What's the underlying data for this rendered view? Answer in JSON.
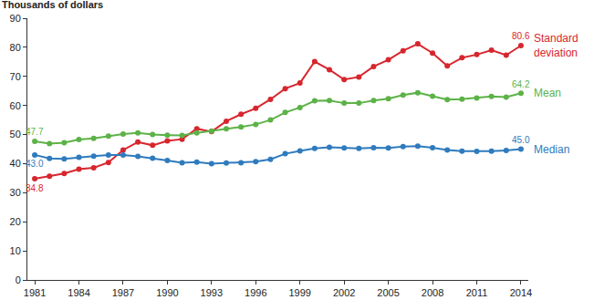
{
  "chart_data": {
    "type": "line",
    "title": "Thousands of dollars",
    "x": [
      1981,
      1982,
      1983,
      1984,
      1985,
      1986,
      1987,
      1988,
      1989,
      1990,
      1991,
      1992,
      1993,
      1994,
      1995,
      1996,
      1997,
      1998,
      1999,
      2000,
      2001,
      2002,
      2003,
      2004,
      2005,
      2006,
      2007,
      2008,
      2009,
      2010,
      2011,
      2012,
      2013,
      2014
    ],
    "series": [
      {
        "name": "Standard deviation",
        "color": "#d7262e",
        "marker": "circle",
        "values": [
          34.8,
          35.7,
          36.6,
          38.1,
          38.6,
          40.4,
          44.7,
          47.4,
          46.3,
          47.8,
          48.4,
          52.0,
          51.0,
          54.6,
          57.0,
          59.0,
          62.1,
          65.8,
          67.7,
          75.1,
          72.3,
          68.9,
          69.8,
          73.4,
          75.7,
          78.8,
          81.2,
          78.0,
          73.6,
          76.4,
          77.5,
          79.0,
          77.3,
          80.6
        ],
        "value_labels": [
          "34.8",
          null,
          null,
          null,
          null,
          null,
          null,
          null,
          null,
          null,
          null,
          null,
          null,
          null,
          null,
          null,
          null,
          null,
          null,
          null,
          null,
          null,
          null,
          null,
          null,
          null,
          null,
          null,
          null,
          null,
          null,
          null,
          null,
          "80.6"
        ]
      },
      {
        "name": "Mean",
        "color": "#5cb247",
        "marker": "circle",
        "values": [
          47.7,
          46.9,
          47.2,
          48.3,
          48.7,
          49.5,
          50.2,
          50.6,
          50.0,
          49.8,
          49.7,
          50.6,
          51.2,
          52.0,
          52.6,
          53.5,
          55.0,
          57.6,
          59.3,
          61.6,
          61.7,
          60.8,
          60.8,
          61.7,
          62.3,
          63.6,
          64.4,
          63.2,
          62.0,
          62.2,
          62.6,
          63.1,
          62.9,
          64.2
        ],
        "value_labels": [
          "47.7",
          null,
          null,
          null,
          null,
          null,
          null,
          null,
          null,
          null,
          null,
          null,
          null,
          null,
          null,
          null,
          null,
          null,
          null,
          null,
          null,
          null,
          null,
          null,
          null,
          null,
          null,
          null,
          null,
          null,
          null,
          null,
          null,
          "64.2"
        ]
      },
      {
        "name": "Median",
        "color": "#2f7bbd",
        "marker": "circle",
        "values": [
          43.0,
          41.8,
          41.6,
          42.2,
          42.6,
          43.0,
          43.0,
          42.5,
          41.9,
          41.1,
          40.3,
          40.5,
          40.0,
          40.2,
          40.3,
          40.7,
          41.5,
          43.4,
          44.4,
          45.2,
          45.6,
          45.4,
          45.2,
          45.5,
          45.4,
          45.9,
          46.0,
          45.5,
          44.7,
          44.3,
          44.2,
          44.3,
          44.5,
          45.0
        ],
        "value_labels": [
          "43.0",
          null,
          null,
          null,
          null,
          null,
          null,
          null,
          null,
          null,
          null,
          null,
          null,
          null,
          null,
          null,
          null,
          null,
          null,
          null,
          null,
          null,
          null,
          null,
          null,
          null,
          null,
          null,
          null,
          null,
          null,
          null,
          null,
          "45.0"
        ]
      }
    ],
    "xlim": [
      1980.5,
      2014.5
    ],
    "xticks": [
      1981,
      1984,
      1987,
      1990,
      1993,
      1996,
      1999,
      2002,
      2005,
      2008,
      2011,
      2014
    ],
    "ylim": [
      0,
      90
    ],
    "yticks": [
      0,
      10,
      20,
      30,
      40,
      50,
      60,
      70,
      80,
      90
    ],
    "grid": false,
    "data_labels": true
  }
}
